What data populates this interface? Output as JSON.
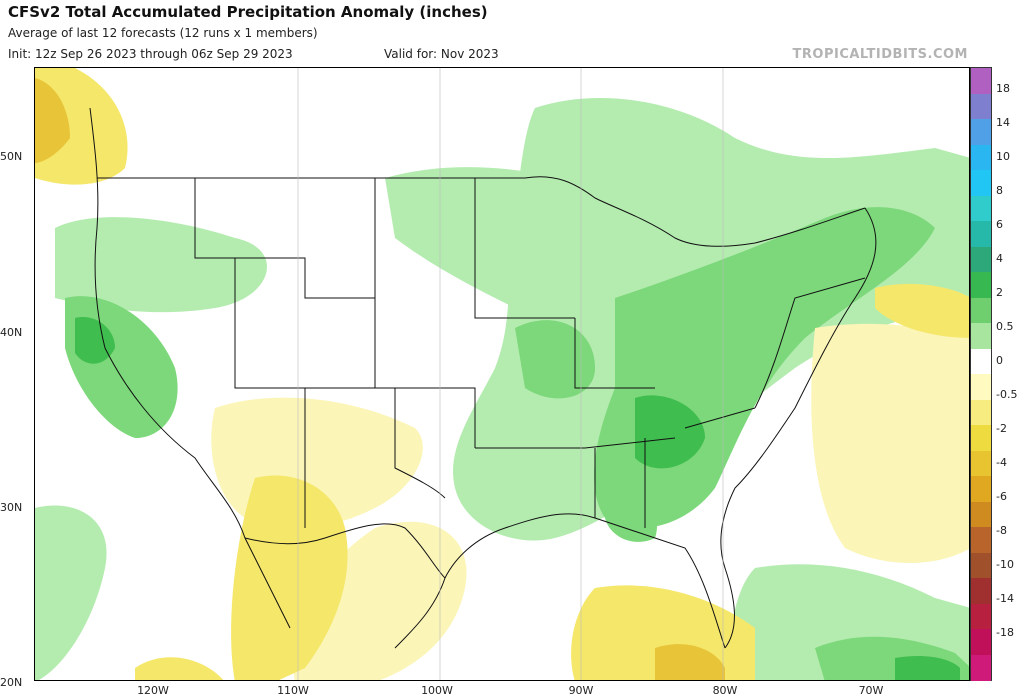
{
  "header": {
    "title": "CFSv2 Total Accumulated Precipitation Anomaly (inches)",
    "subtitle1": "Average of last 12 forecasts (12 runs x 1 members)",
    "init": "Init: 12z Sep 26 2023 through 06z Sep 29 2023",
    "valid": "Valid for: Nov 2023",
    "credit": "TROPICALTIDBITS.COM"
  },
  "axes": {
    "lat_labels": [
      "50N",
      "40N",
      "30N",
      "20N"
    ],
    "lon_labels": [
      "120W",
      "110W",
      "100W",
      "90W",
      "80W",
      "70W"
    ]
  },
  "colorbar": {
    "labels": [
      "18",
      "14",
      "10",
      "8",
      "6",
      "4",
      "2",
      "0.5",
      "0",
      "-0.5",
      "-2",
      "-4",
      "-6",
      "-8",
      "-10",
      "-14",
      "-18"
    ],
    "colors": [
      "#b060c0",
      "#7f7fd0",
      "#4fa0e6",
      "#2ab6f0",
      "#22c6f4",
      "#30cccc",
      "#26b8a8",
      "#2ca87a",
      "#38b850",
      "#6fcf6f",
      "#a8e6a0",
      "#ffffff",
      "#fffac0",
      "#f7ec80",
      "#eedb40",
      "#e8c430",
      "#e0a820",
      "#cf8a20",
      "#b8642a",
      "#a0502a",
      "#a03030",
      "#b82040",
      "#c0105a",
      "#d01a7a"
    ]
  },
  "map_features": {
    "land_outline": "coastline-and-borders",
    "anomaly_fill": "precipitation-anomaly-shading"
  }
}
